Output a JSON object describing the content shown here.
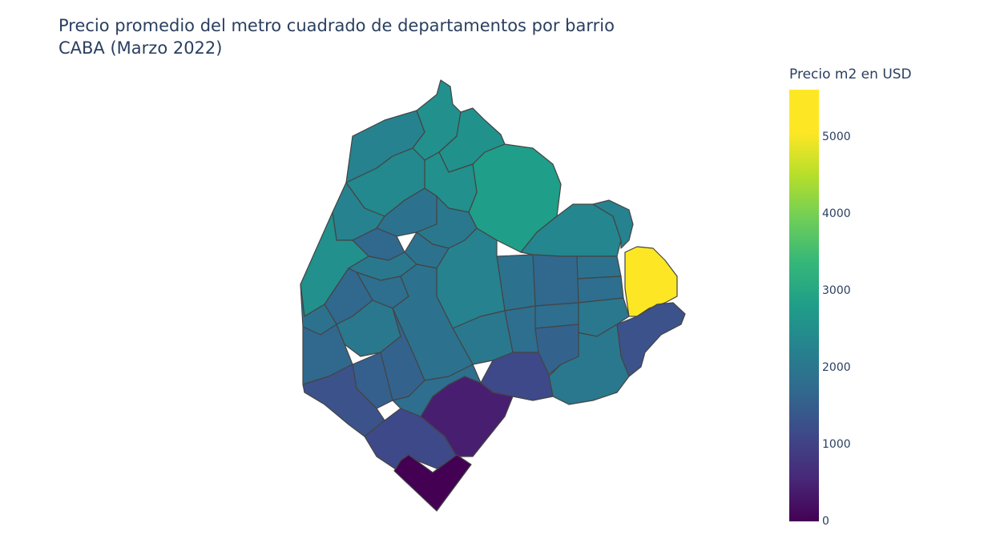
{
  "title": {
    "line1": "Precio promedio del metro cuadrado de departamentos por barrio",
    "line2": "CABA (Marzo 2022)"
  },
  "colorbar": {
    "title": "Precio m2 en USD",
    "ticks": [
      "0",
      "1000",
      "2000",
      "3000",
      "4000",
      "5000"
    ],
    "colorscale": "Viridis",
    "range": [
      0,
      5600
    ]
  },
  "colors": {
    "viridis": [
      "#440154",
      "#482878",
      "#3e4989",
      "#31688e",
      "#26828e",
      "#1f9e89",
      "#35b779",
      "#6ece58",
      "#b5de2b",
      "#fde725"
    ],
    "border": "#444444"
  },
  "map_data": {
    "type": "choropleth",
    "region": "CABA"
  }
}
